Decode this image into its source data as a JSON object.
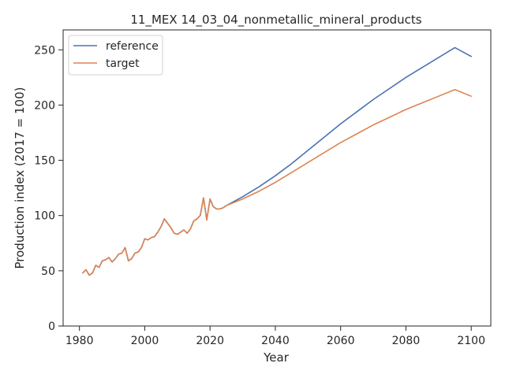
{
  "chart_data": {
    "type": "line",
    "title": "11_MEX 14_03_04_nonmetallic_mineral_products",
    "xlabel": "Year",
    "ylabel": "Production index (2017 = 100)",
    "xlim": [
      1975,
      2106
    ],
    "ylim": [
      0,
      268
    ],
    "xticks": [
      1980,
      2000,
      2020,
      2040,
      2060,
      2080,
      2100
    ],
    "yticks": [
      0,
      50,
      100,
      150,
      200,
      250
    ],
    "grid": false,
    "legend_position": "top-left",
    "series": [
      {
        "name": "reference",
        "color": "#4c72b0",
        "x": [
          1981,
          1982,
          1983,
          1984,
          1985,
          1986,
          1987,
          1988,
          1989,
          1990,
          1991,
          1992,
          1993,
          1994,
          1995,
          1996,
          1997,
          1998,
          1999,
          2000,
          2001,
          2002,
          2003,
          2004,
          2005,
          2006,
          2007,
          2008,
          2009,
          2010,
          2011,
          2012,
          2013,
          2014,
          2015,
          2016,
          2017,
          2018,
          2019,
          2020,
          2021,
          2022,
          2023,
          2024,
          2025,
          2030,
          2035,
          2040,
          2045,
          2050,
          2055,
          2060,
          2065,
          2070,
          2075,
          2080,
          2085,
          2090,
          2095,
          2100
        ],
        "y": [
          48,
          51,
          46,
          48,
          55,
          53,
          59,
          60,
          62,
          58,
          61,
          65,
          66,
          71,
          59,
          61,
          66,
          67,
          71,
          79,
          78,
          80,
          81,
          85,
          90,
          97,
          93,
          89,
          84,
          83,
          85,
          87,
          84,
          88,
          95,
          97,
          100,
          116,
          96,
          115,
          108,
          106,
          106,
          107,
          109,
          117,
          126,
          136,
          147,
          159,
          171,
          183,
          194,
          205,
          215,
          225,
          234,
          243,
          252,
          244
        ]
      },
      {
        "name": "target",
        "color": "#dd8452",
        "x": [
          1981,
          1982,
          1983,
          1984,
          1985,
          1986,
          1987,
          1988,
          1989,
          1990,
          1991,
          1992,
          1993,
          1994,
          1995,
          1996,
          1997,
          1998,
          1999,
          2000,
          2001,
          2002,
          2003,
          2004,
          2005,
          2006,
          2007,
          2008,
          2009,
          2010,
          2011,
          2012,
          2013,
          2014,
          2015,
          2016,
          2017,
          2018,
          2019,
          2020,
          2021,
          2022,
          2023,
          2024,
          2025,
          2030,
          2035,
          2040,
          2045,
          2050,
          2055,
          2060,
          2065,
          2070,
          2075,
          2080,
          2085,
          2090,
          2095,
          2100
        ],
        "y": [
          48,
          51,
          46,
          48,
          55,
          53,
          59,
          60,
          62,
          58,
          61,
          65,
          66,
          71,
          59,
          61,
          66,
          67,
          71,
          79,
          78,
          80,
          81,
          85,
          90,
          97,
          93,
          89,
          84,
          83,
          85,
          87,
          84,
          88,
          95,
          97,
          100,
          116,
          96,
          115,
          108,
          106,
          106,
          107,
          109,
          115,
          122,
          130,
          139,
          148,
          157,
          166,
          174,
          182,
          189,
          196,
          202,
          208,
          214,
          208
        ]
      }
    ]
  }
}
